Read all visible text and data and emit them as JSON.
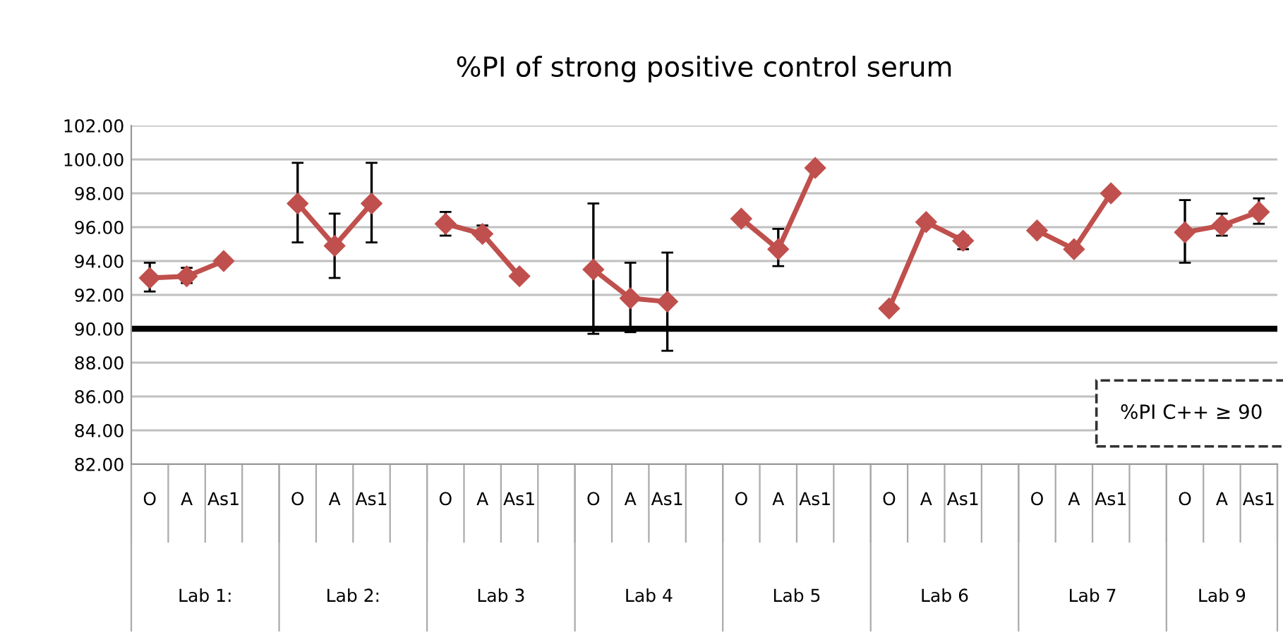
{
  "chart_data": {
    "type": "line",
    "title": "%PI of strong positive control serum",
    "categories": [
      "O",
      "A",
      "As1",
      null,
      "O",
      "A",
      "As1",
      null,
      "O",
      "A",
      "As1",
      null,
      "O",
      "A",
      "As1",
      null,
      "O",
      "A",
      "As1",
      null,
      "O",
      "A",
      "As1",
      null,
      "O",
      "A",
      "As1",
      null,
      "O",
      "A",
      "As1"
    ],
    "series": [
      {
        "color": "#c0504d",
        "values": [
          93.0,
          93.1,
          94.0,
          null,
          97.4,
          94.9,
          97.4,
          null,
          96.2,
          95.6,
          93.1,
          null,
          93.5,
          91.8,
          91.6,
          null,
          96.5,
          94.7,
          99.5,
          null,
          91.2,
          96.3,
          95.2,
          null,
          95.8,
          94.7,
          98.0,
          null,
          95.7,
          96.1,
          96.9
        ],
        "errors": [
          [
            92.2,
            93.9
          ],
          [
            92.7,
            93.6
          ],
          null,
          null,
          [
            95.1,
            99.8
          ],
          [
            93.0,
            96.8
          ],
          [
            95.1,
            99.8
          ],
          null,
          [
            95.5,
            96.9
          ],
          [
            95.3,
            96.1
          ],
          null,
          null,
          [
            89.7,
            97.4
          ],
          [
            89.8,
            93.9
          ],
          [
            88.7,
            94.5
          ],
          null,
          null,
          [
            93.7,
            95.9
          ],
          null,
          null,
          null,
          null,
          [
            94.7,
            95.5
          ],
          null,
          null,
          null,
          null,
          null,
          [
            93.9,
            97.6
          ],
          [
            95.5,
            96.8
          ],
          [
            96.2,
            97.7
          ]
        ]
      }
    ],
    "ylim": [
      82,
      102
    ],
    "yticks": [
      {
        "value": 82,
        "label": "82.00"
      },
      {
        "value": 84,
        "label": "84.00"
      },
      {
        "value": 86,
        "label": "86.00"
      },
      {
        "value": 88,
        "label": "88.00"
      },
      {
        "value": 90,
        "label": "90.00"
      },
      {
        "value": 92,
        "label": "92.00"
      },
      {
        "value": 94,
        "label": "94.00"
      },
      {
        "value": 96,
        "label": "96.00"
      },
      {
        "value": 98,
        "label": "98.00"
      },
      {
        "value": 100,
        "label": "100.00"
      },
      {
        "value": 102,
        "label": "102.00"
      }
    ],
    "grid": "y",
    "marker": "diamond",
    "line_style": "solid",
    "ref_lines": [
      {
        "axis": "y",
        "value": 90,
        "color": "#000000",
        "line_style": "solid"
      }
    ],
    "annotations": [
      "%PI C++ ≥ 90",
      "Lab 1:",
      "Lab 2:",
      "Lab 3",
      "Lab 4",
      "Lab 5",
      "Lab 6",
      "Lab 7",
      "Lab 9"
    ]
  }
}
